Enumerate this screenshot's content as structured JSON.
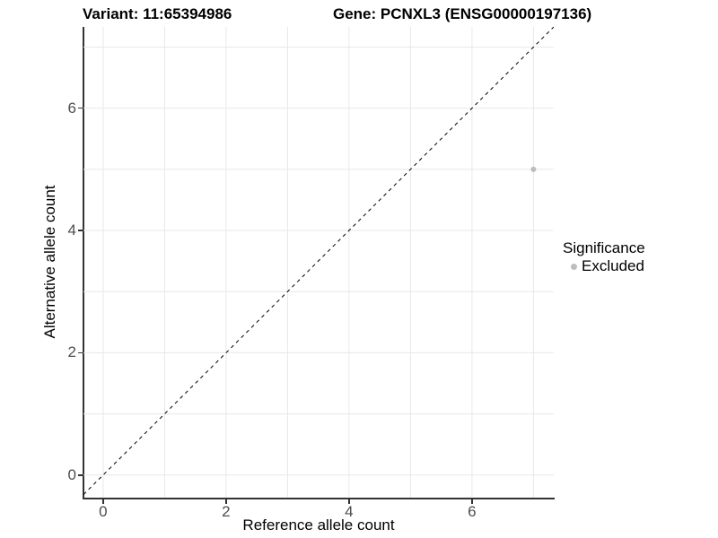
{
  "titles": {
    "left": "Variant: 11:65394986",
    "right": "Gene: PCNXL3 (ENSG00000197136)"
  },
  "chart_data": {
    "type": "scatter",
    "title": "Variant: 11:65394986   Gene: PCNXL3 (ENSG00000197136)",
    "xlabel": "Reference allele count",
    "ylabel": "Alternative allele count",
    "xlim": [
      -0.32,
      7.33
    ],
    "ylim": [
      -0.37,
      7.33
    ],
    "xticks": [
      0,
      2,
      4,
      6
    ],
    "yticks": [
      0,
      2,
      4,
      6
    ],
    "grid_x": [
      0,
      1,
      2,
      3,
      4,
      5,
      6,
      7
    ],
    "grid_y": [
      0,
      1,
      2,
      3,
      4,
      5,
      6,
      7
    ],
    "grid_on": true,
    "identity_line": {
      "style": "dashed",
      "color": "#000000",
      "slope": 1,
      "intercept": 0
    },
    "series": [
      {
        "name": "Excluded",
        "color": "#bdbdbd",
        "points": [
          [
            7,
            5
          ]
        ]
      }
    ],
    "legend": {
      "title": "Significance",
      "position": "right",
      "items": [
        {
          "label": "Excluded",
          "color": "#bdbdbd",
          "marker": "dot-icon"
        }
      ]
    },
    "colors": {
      "background": "#ffffff",
      "grid": "#e8e8e8",
      "axis_line": "#333333",
      "tick_label": "#4d4d4d",
      "point": "#bdbdbd"
    }
  }
}
